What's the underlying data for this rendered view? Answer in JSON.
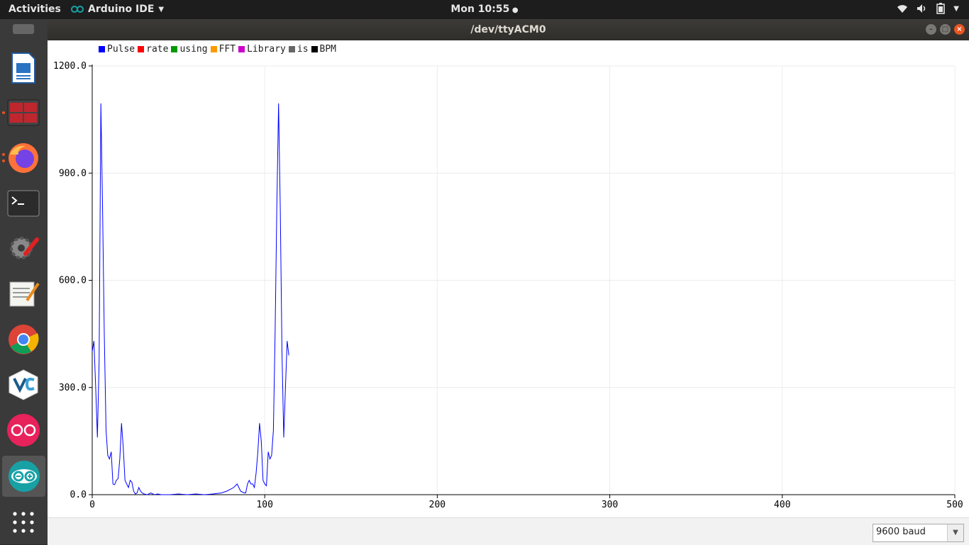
{
  "topbar": {
    "activities": "Activities",
    "app_name": "Arduino IDE",
    "clock": "Mon 10:55",
    "colors": {
      "bg": "#1d1d1d"
    }
  },
  "dock": {
    "items": [
      "libreoffice-writer-icon",
      "terminal-multiplexer-icon",
      "firefox-icon",
      "terminal-icon",
      "system-settings-icon",
      "text-editor-icon",
      "chrome-icon",
      "veracrypt-icon",
      "flickr-icon",
      "arduino-icon",
      "show-applications-icon"
    ]
  },
  "window": {
    "title": "/dev/ttyACM0"
  },
  "baud": {
    "selected": "9600 baud"
  },
  "chart_data": {
    "type": "line",
    "legend": [
      {
        "name": "Pulse",
        "color": "#0000ff"
      },
      {
        "name": "rate",
        "color": "#ff0000"
      },
      {
        "name": "using",
        "color": "#009900"
      },
      {
        "name": "FFT",
        "color": "#ff9900"
      },
      {
        "name": "Library",
        "color": "#cc00cc"
      },
      {
        "name": "is",
        "color": "#666666"
      },
      {
        "name": "BPM",
        "color": "#000000"
      }
    ],
    "xlim": [
      0,
      500
    ],
    "ylim": [
      0,
      1200
    ],
    "xticks": [
      "0",
      "100",
      "200",
      "300",
      "400",
      "500"
    ],
    "yticks": [
      "0.0",
      "300.0",
      "600.0",
      "900.0",
      "1200.0"
    ],
    "legend_position": "top-left",
    "grid": true,
    "series": [
      {
        "name": "Pulse",
        "color": "#0000ff",
        "x": [
          0,
          1,
          2,
          3,
          4,
          5,
          6,
          7,
          8,
          9,
          10,
          11,
          12,
          13,
          14,
          15,
          16,
          17,
          18,
          19,
          20,
          21,
          22,
          23,
          24,
          25,
          26,
          27,
          28,
          29,
          30,
          32,
          34,
          36,
          38,
          40,
          45,
          50,
          55,
          60,
          65,
          70,
          75,
          78,
          80,
          82,
          84,
          86,
          88,
          89,
          90,
          91,
          92,
          93,
          94,
          95,
          96,
          97,
          98,
          99,
          100,
          101,
          102,
          103,
          104,
          105,
          106,
          107,
          108,
          109,
          110,
          111,
          112,
          113,
          114
        ],
        "y": [
          400,
          430,
          300,
          160,
          370,
          1095,
          800,
          450,
          180,
          110,
          100,
          120,
          30,
          28,
          40,
          45,
          100,
          200,
          130,
          40,
          30,
          20,
          40,
          35,
          10,
          2,
          5,
          20,
          10,
          5,
          2,
          0,
          5,
          0,
          2,
          0,
          0,
          2,
          0,
          2,
          0,
          2,
          5,
          10,
          15,
          20,
          30,
          10,
          5,
          5,
          30,
          40,
          30,
          30,
          20,
          60,
          120,
          200,
          150,
          40,
          30,
          25,
          120,
          100,
          110,
          180,
          450,
          800,
          1095,
          800,
          400,
          160,
          300,
          430,
          390
        ]
      }
    ]
  }
}
